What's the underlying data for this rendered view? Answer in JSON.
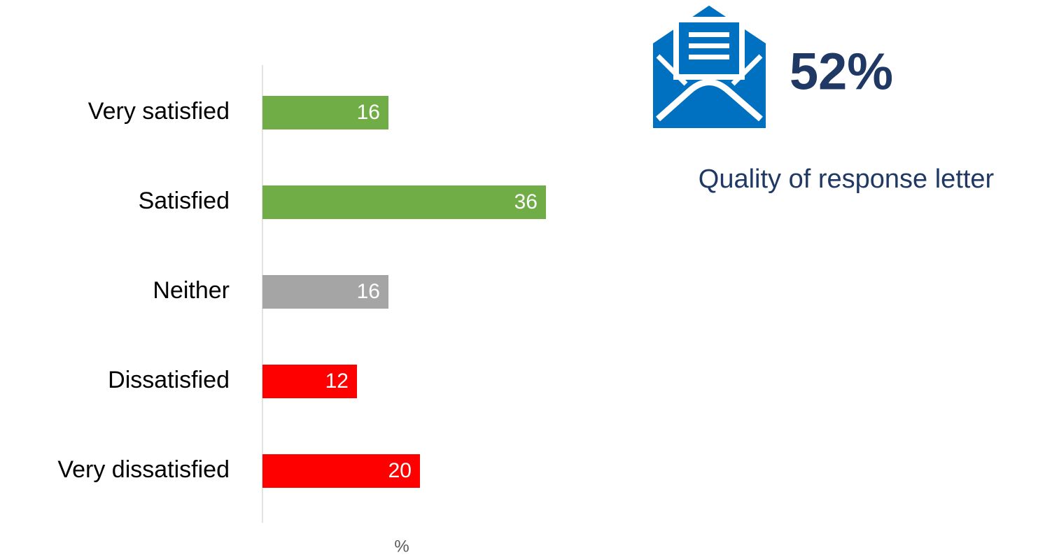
{
  "chart_data": {
    "type": "barh",
    "categories": [
      "Very satisfied",
      "Satisfied",
      "Neither",
      "Dissatisfied",
      "Very dissatisfied"
    ],
    "values": [
      16,
      36,
      16,
      12,
      20
    ],
    "colors": [
      "#70ad47",
      "#70ad47",
      "#a5a5a5",
      "#ff0000",
      "#ff0000"
    ],
    "xlabel": "%",
    "xlim": [
      0,
      40
    ]
  },
  "kpi": {
    "value": "52%",
    "caption": "Quality of response letter"
  }
}
